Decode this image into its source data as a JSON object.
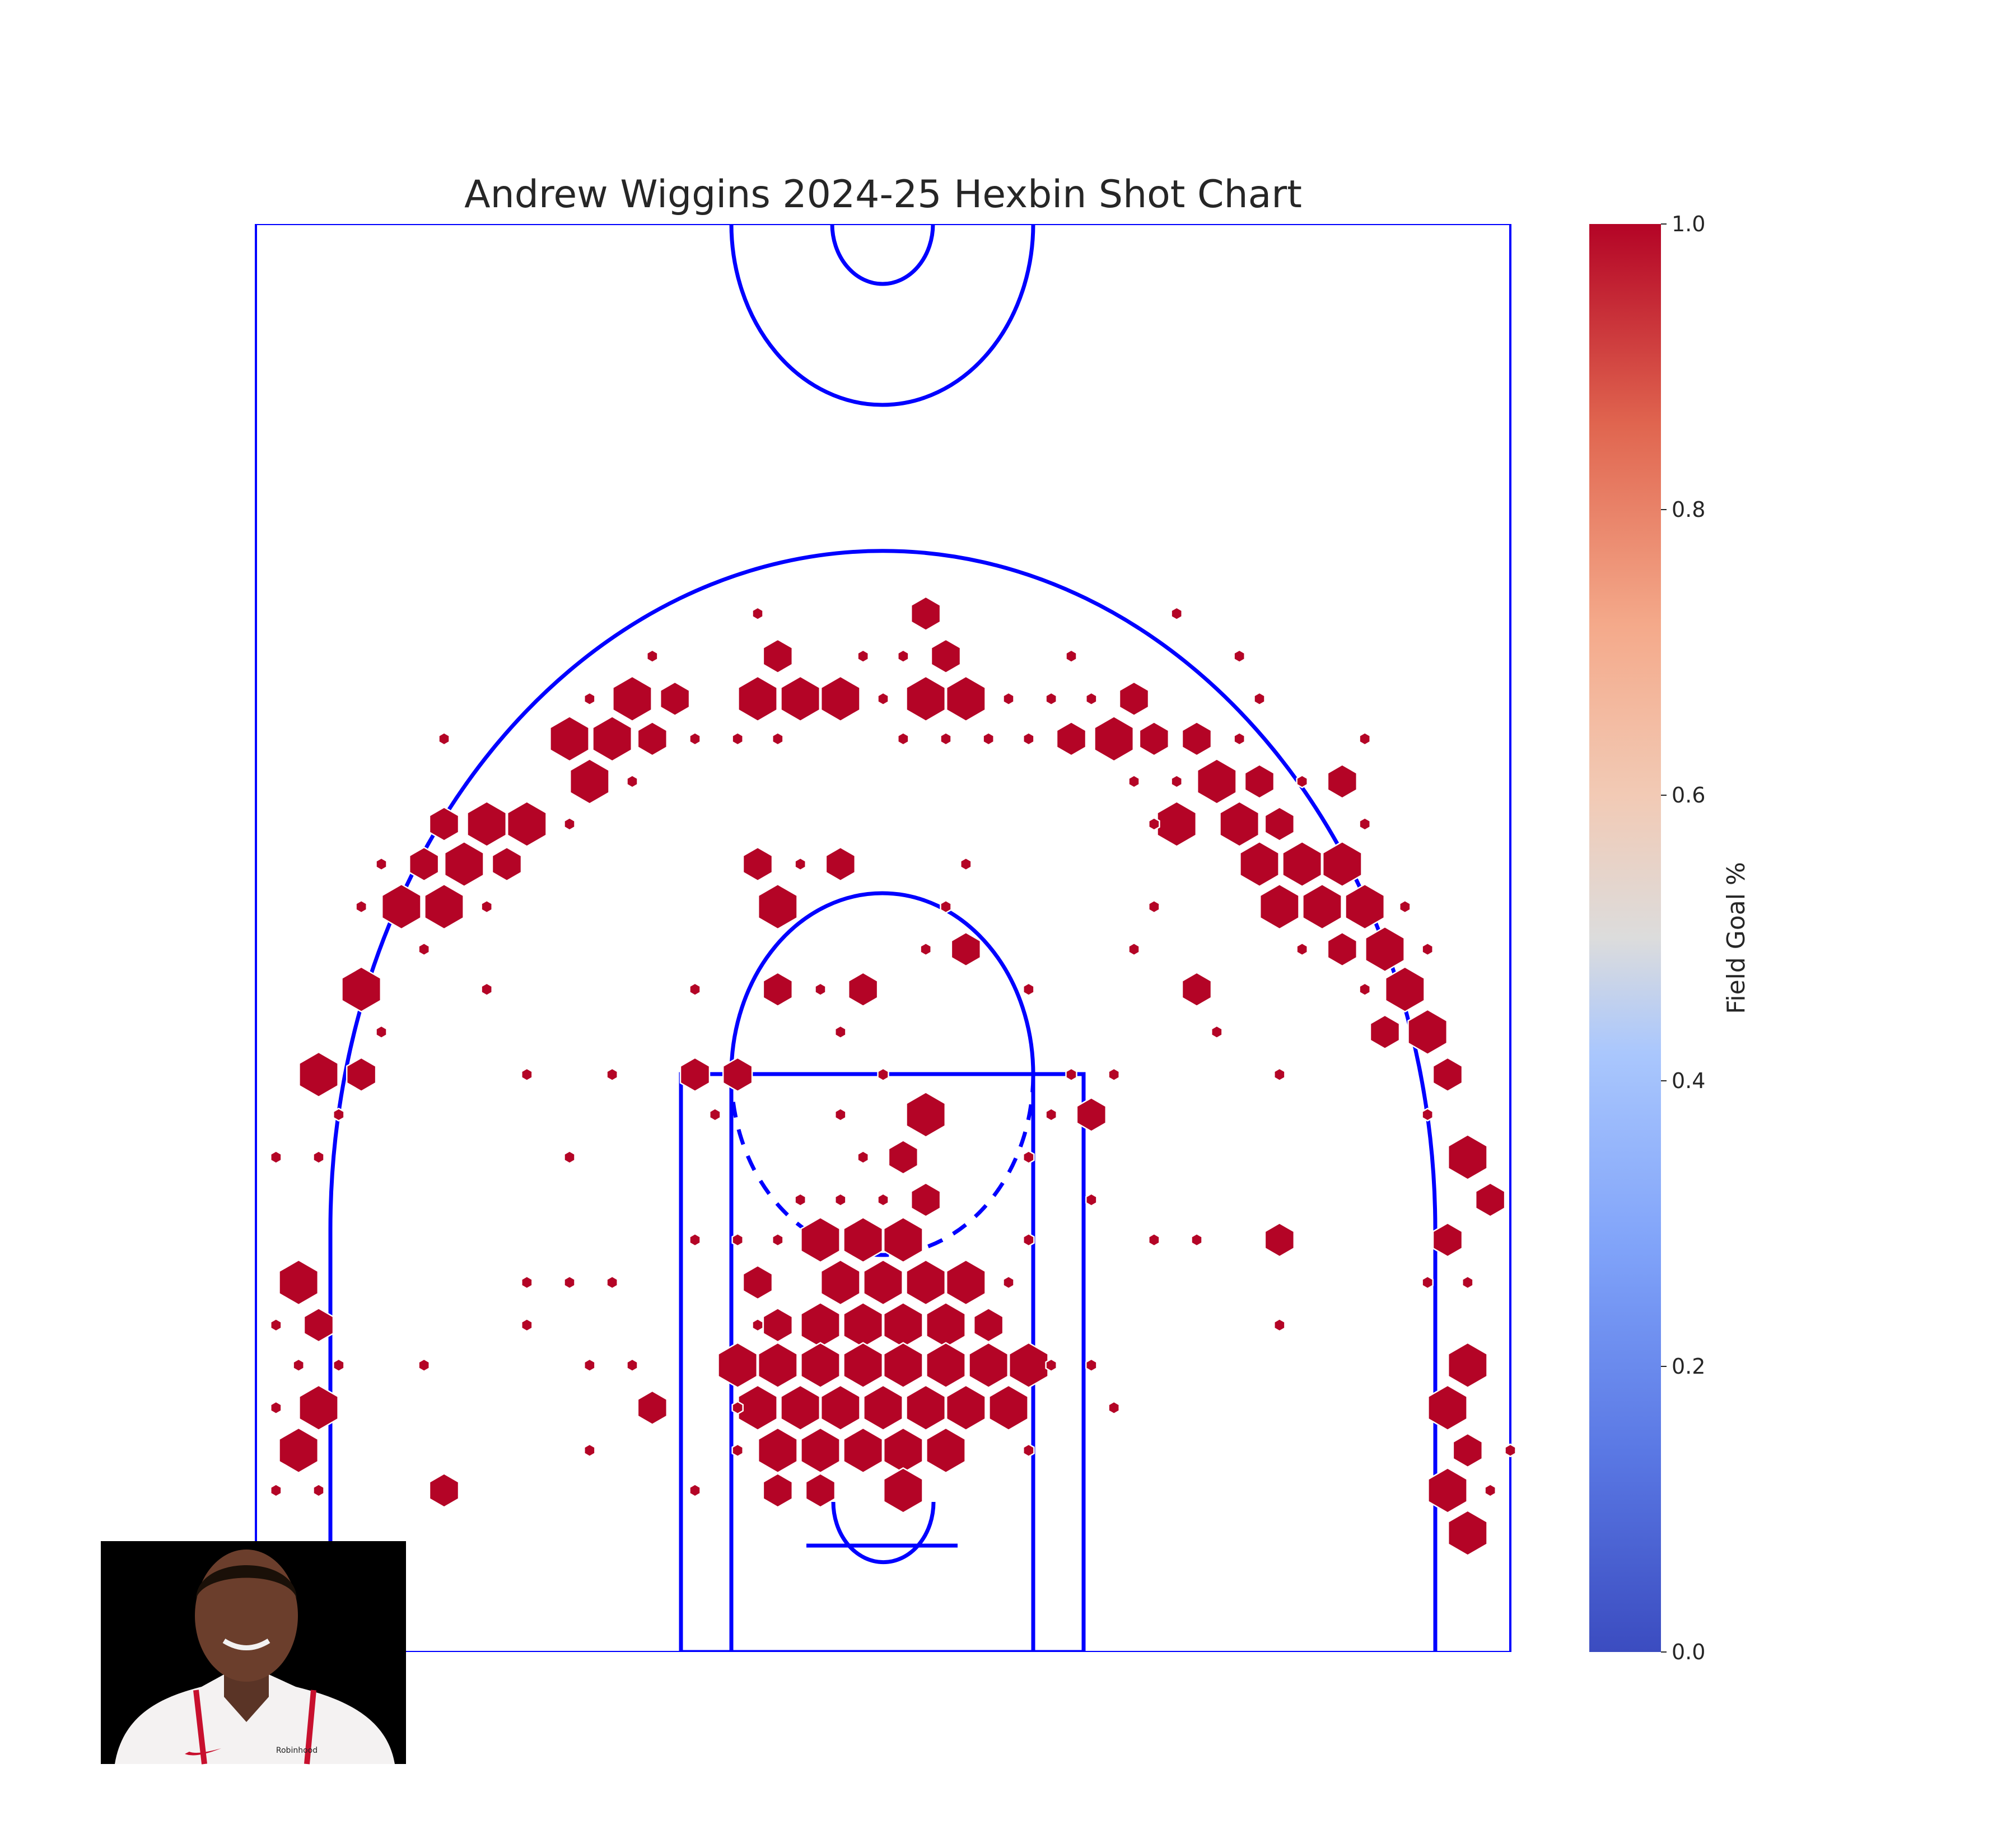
{
  "chart_data": {
    "type": "hexbin",
    "title": "Andrew Wiggins 2024-25 Hexbin Shot Chart",
    "colorbar": {
      "label": "Field Goal %",
      "range": [
        0,
        1
      ],
      "ticks": [
        "0.0",
        "0.2",
        "0.4",
        "0.6",
        "0.8",
        "1.0"
      ],
      "colormap": "coolwarm",
      "colors": [
        "#3b4cc0",
        "#6788ee",
        "#9abbff",
        "#c9d7f0",
        "#edd1c2",
        "#f7a889",
        "#e26952",
        "#b40426"
      ]
    },
    "hex_color": "#b40426",
    "court_color": "#0000ff",
    "xlim": [
      -250,
      250
    ],
    "ylim": [
      -47.5,
      522.5
    ],
    "size_levels": "relative shot frequency (1 = smallest, 5 = largest)",
    "bins": [
      {
        "x": 17,
        "y": 367,
        "s": 2
      },
      {
        "x": -50,
        "y": 367,
        "s": 1
      },
      {
        "x": 117,
        "y": 367,
        "s": 1
      },
      {
        "x": -42,
        "y": 350,
        "s": 2
      },
      {
        "x": 25,
        "y": 350,
        "s": 2
      },
      {
        "x": -92,
        "y": 350,
        "s": 1
      },
      {
        "x": -8,
        "y": 350,
        "s": 1
      },
      {
        "x": 8,
        "y": 350,
        "s": 1
      },
      {
        "x": 75,
        "y": 350,
        "s": 1
      },
      {
        "x": 142,
        "y": 350,
        "s": 1
      },
      {
        "x": -50,
        "y": 333,
        "s": 4
      },
      {
        "x": -33,
        "y": 333,
        "s": 4
      },
      {
        "x": -17,
        "y": 333,
        "s": 4
      },
      {
        "x": 17,
        "y": 333,
        "s": 4
      },
      {
        "x": 33,
        "y": 333,
        "s": 4
      },
      {
        "x": -100,
        "y": 333,
        "s": 4
      },
      {
        "x": -83,
        "y": 333,
        "s": 2
      },
      {
        "x": 100,
        "y": 333,
        "s": 2
      },
      {
        "x": -117,
        "y": 333,
        "s": 1
      },
      {
        "x": 0,
        "y": 333,
        "s": 1
      },
      {
        "x": 50,
        "y": 333,
        "s": 1
      },
      {
        "x": 67,
        "y": 333,
        "s": 1
      },
      {
        "x": 83,
        "y": 333,
        "s": 1
      },
      {
        "x": 150,
        "y": 333,
        "s": 1
      },
      {
        "x": -125,
        "y": 317,
        "s": 4
      },
      {
        "x": -108,
        "y": 317,
        "s": 4
      },
      {
        "x": 92,
        "y": 317,
        "s": 4
      },
      {
        "x": -92,
        "y": 317,
        "s": 2
      },
      {
        "x": 75,
        "y": 317,
        "s": 2
      },
      {
        "x": 108,
        "y": 317,
        "s": 2
      },
      {
        "x": 125,
        "y": 317,
        "s": 2
      },
      {
        "x": -175,
        "y": 317,
        "s": 1
      },
      {
        "x": -75,
        "y": 317,
        "s": 1
      },
      {
        "x": -58,
        "y": 317,
        "s": 1
      },
      {
        "x": -42,
        "y": 317,
        "s": 1
      },
      {
        "x": 8,
        "y": 317,
        "s": 1
      },
      {
        "x": 25,
        "y": 317,
        "s": 1
      },
      {
        "x": 42,
        "y": 317,
        "s": 1
      },
      {
        "x": 58,
        "y": 317,
        "s": 1
      },
      {
        "x": 142,
        "y": 317,
        "s": 1
      },
      {
        "x": 192,
        "y": 317,
        "s": 1
      },
      {
        "x": -117,
        "y": 300,
        "s": 4
      },
      {
        "x": 133,
        "y": 300,
        "s": 4
      },
      {
        "x": 150,
        "y": 300,
        "s": 2
      },
      {
        "x": 183,
        "y": 300,
        "s": 2
      },
      {
        "x": -100,
        "y": 300,
        "s": 1
      },
      {
        "x": 100,
        "y": 300,
        "s": 1
      },
      {
        "x": 117,
        "y": 300,
        "s": 1
      },
      {
        "x": 167,
        "y": 300,
        "s": 1
      },
      {
        "x": -158,
        "y": 283,
        "s": 4
      },
      {
        "x": -142,
        "y": 283,
        "s": 4
      },
      {
        "x": 117,
        "y": 283,
        "s": 4
      },
      {
        "x": 142,
        "y": 283,
        "s": 4
      },
      {
        "x": -175,
        "y": 283,
        "s": 2
      },
      {
        "x": 158,
        "y": 283,
        "s": 2
      },
      {
        "x": -125,
        "y": 283,
        "s": 1
      },
      {
        "x": 108,
        "y": 283,
        "s": 1
      },
      {
        "x": 192,
        "y": 283,
        "s": 1
      },
      {
        "x": -167,
        "y": 267,
        "s": 4
      },
      {
        "x": 150,
        "y": 267,
        "s": 4
      },
      {
        "x": 167,
        "y": 267,
        "s": 4
      },
      {
        "x": 183,
        "y": 267,
        "s": 4
      },
      {
        "x": -183,
        "y": 267,
        "s": 2
      },
      {
        "x": -150,
        "y": 267,
        "s": 2
      },
      {
        "x": -50,
        "y": 267,
        "s": 2
      },
      {
        "x": -17,
        "y": 267,
        "s": 2
      },
      {
        "x": -200,
        "y": 267,
        "s": 1
      },
      {
        "x": -33,
        "y": 267,
        "s": 1
      },
      {
        "x": 33,
        "y": 267,
        "s": 1
      },
      {
        "x": -192,
        "y": 250,
        "s": 4
      },
      {
        "x": -175,
        "y": 250,
        "s": 4
      },
      {
        "x": 158,
        "y": 250,
        "s": 4
      },
      {
        "x": 175,
        "y": 250,
        "s": 4
      },
      {
        "x": 192,
        "y": 250,
        "s": 4
      },
      {
        "x": -42,
        "y": 250,
        "s": 4
      },
      {
        "x": -208,
        "y": 250,
        "s": 1
      },
      {
        "x": -158,
        "y": 250,
        "s": 1
      },
      {
        "x": 25,
        "y": 250,
        "s": 1
      },
      {
        "x": 108,
        "y": 250,
        "s": 1
      },
      {
        "x": 208,
        "y": 250,
        "s": 1
      },
      {
        "x": 200,
        "y": 233,
        "s": 4
      },
      {
        "x": 33,
        "y": 233,
        "s": 2
      },
      {
        "x": 183,
        "y": 233,
        "s": 2
      },
      {
        "x": -183,
        "y": 233,
        "s": 1
      },
      {
        "x": 17,
        "y": 233,
        "s": 1
      },
      {
        "x": 100,
        "y": 233,
        "s": 1
      },
      {
        "x": 167,
        "y": 233,
        "s": 1
      },
      {
        "x": 217,
        "y": 233,
        "s": 1
      },
      {
        "x": -208,
        "y": 217,
        "s": 4
      },
      {
        "x": 208,
        "y": 217,
        "s": 4
      },
      {
        "x": -42,
        "y": 217,
        "s": 2
      },
      {
        "x": -8,
        "y": 217,
        "s": 2
      },
      {
        "x": 125,
        "y": 217,
        "s": 2
      },
      {
        "x": -158,
        "y": 217,
        "s": 1
      },
      {
        "x": -75,
        "y": 217,
        "s": 1
      },
      {
        "x": -25,
        "y": 217,
        "s": 1
      },
      {
        "x": 58,
        "y": 217,
        "s": 1
      },
      {
        "x": 192,
        "y": 217,
        "s": 1
      },
      {
        "x": 217,
        "y": 200,
        "s": 4
      },
      {
        "x": 200,
        "y": 200,
        "s": 2
      },
      {
        "x": -200,
        "y": 200,
        "s": 1
      },
      {
        "x": -17,
        "y": 200,
        "s": 1
      },
      {
        "x": 133,
        "y": 200,
        "s": 1
      },
      {
        "x": -225,
        "y": 183,
        "s": 4
      },
      {
        "x": -208,
        "y": 183,
        "s": 2
      },
      {
        "x": -75,
        "y": 183,
        "s": 2
      },
      {
        "x": -58,
        "y": 183,
        "s": 2
      },
      {
        "x": 225,
        "y": 183,
        "s": 2
      },
      {
        "x": -142,
        "y": 183,
        "s": 1
      },
      {
        "x": -108,
        "y": 183,
        "s": 1
      },
      {
        "x": 0,
        "y": 183,
        "s": 1
      },
      {
        "x": 75,
        "y": 183,
        "s": 1
      },
      {
        "x": 92,
        "y": 183,
        "s": 1
      },
      {
        "x": 158,
        "y": 183,
        "s": 1
      },
      {
        "x": 17,
        "y": 167,
        "s": 4
      },
      {
        "x": 83,
        "y": 167,
        "s": 2
      },
      {
        "x": -217,
        "y": 167,
        "s": 1
      },
      {
        "x": -67,
        "y": 167,
        "s": 1
      },
      {
        "x": -17,
        "y": 167,
        "s": 1
      },
      {
        "x": 67,
        "y": 167,
        "s": 1
      },
      {
        "x": 217,
        "y": 167,
        "s": 1
      },
      {
        "x": 233,
        "y": 150,
        "s": 4
      },
      {
        "x": 8,
        "y": 150,
        "s": 2
      },
      {
        "x": -242,
        "y": 150,
        "s": 1
      },
      {
        "x": -225,
        "y": 150,
        "s": 1
      },
      {
        "x": -125,
        "y": 150,
        "s": 1
      },
      {
        "x": -8,
        "y": 150,
        "s": 1
      },
      {
        "x": 58,
        "y": 150,
        "s": 1
      },
      {
        "x": 242,
        "y": 133,
        "s": 2
      },
      {
        "x": 17,
        "y": 133,
        "s": 2
      },
      {
        "x": -33,
        "y": 133,
        "s": 1
      },
      {
        "x": -17,
        "y": 133,
        "s": 1
      },
      {
        "x": 0,
        "y": 133,
        "s": 1
      },
      {
        "x": 83,
        "y": 133,
        "s": 1
      },
      {
        "x": -25,
        "y": 117,
        "s": 4
      },
      {
        "x": -8,
        "y": 117,
        "s": 4
      },
      {
        "x": 8,
        "y": 117,
        "s": 4
      },
      {
        "x": 158,
        "y": 117,
        "s": 2
      },
      {
        "x": 225,
        "y": 117,
        "s": 2
      },
      {
        "x": -75,
        "y": 117,
        "s": 1
      },
      {
        "x": -58,
        "y": 117,
        "s": 1
      },
      {
        "x": -42,
        "y": 117,
        "s": 1
      },
      {
        "x": 58,
        "y": 117,
        "s": 1
      },
      {
        "x": 108,
        "y": 117,
        "s": 1
      },
      {
        "x": 125,
        "y": 117,
        "s": 1
      },
      {
        "x": -17,
        "y": 100,
        "s": 4
      },
      {
        "x": 0,
        "y": 100,
        "s": 4
      },
      {
        "x": 17,
        "y": 100,
        "s": 4
      },
      {
        "x": 33,
        "y": 100,
        "s": 4
      },
      {
        "x": -233,
        "y": 100,
        "s": 4
      },
      {
        "x": -50,
        "y": 100,
        "s": 2
      },
      {
        "x": -142,
        "y": 100,
        "s": 1
      },
      {
        "x": -125,
        "y": 100,
        "s": 1
      },
      {
        "x": -108,
        "y": 100,
        "s": 1
      },
      {
        "x": 50,
        "y": 100,
        "s": 1
      },
      {
        "x": 217,
        "y": 100,
        "s": 1
      },
      {
        "x": 233,
        "y": 100,
        "s": 1
      },
      {
        "x": -25,
        "y": 83,
        "s": 4
      },
      {
        "x": -8,
        "y": 83,
        "s": 4
      },
      {
        "x": 8,
        "y": 83,
        "s": 4
      },
      {
        "x": 25,
        "y": 83,
        "s": 4
      },
      {
        "x": -225,
        "y": 83,
        "s": 2
      },
      {
        "x": -42,
        "y": 83,
        "s": 2
      },
      {
        "x": 42,
        "y": 83,
        "s": 2
      },
      {
        "x": -242,
        "y": 83,
        "s": 1
      },
      {
        "x": -142,
        "y": 83,
        "s": 1
      },
      {
        "x": -50,
        "y": 83,
        "s": 1
      },
      {
        "x": 158,
        "y": 83,
        "s": 1
      },
      {
        "x": -58,
        "y": 67,
        "s": 4
      },
      {
        "x": -42,
        "y": 67,
        "s": 4
      },
      {
        "x": -25,
        "y": 67,
        "s": 4
      },
      {
        "x": -8,
        "y": 67,
        "s": 4
      },
      {
        "x": 8,
        "y": 67,
        "s": 4
      },
      {
        "x": 25,
        "y": 67,
        "s": 4
      },
      {
        "x": 42,
        "y": 67,
        "s": 4
      },
      {
        "x": 58,
        "y": 67,
        "s": 4
      },
      {
        "x": 233,
        "y": 67,
        "s": 4
      },
      {
        "x": -233,
        "y": 67,
        "s": 1
      },
      {
        "x": -217,
        "y": 67,
        "s": 1
      },
      {
        "x": -183,
        "y": 67,
        "s": 1
      },
      {
        "x": -117,
        "y": 67,
        "s": 1
      },
      {
        "x": -100,
        "y": 67,
        "s": 1
      },
      {
        "x": 67,
        "y": 67,
        "s": 1
      },
      {
        "x": 83,
        "y": 67,
        "s": 1
      },
      {
        "x": -50,
        "y": 50,
        "s": 4
      },
      {
        "x": -33,
        "y": 50,
        "s": 4
      },
      {
        "x": -17,
        "y": 50,
        "s": 4
      },
      {
        "x": 0,
        "y": 50,
        "s": 4
      },
      {
        "x": 17,
        "y": 50,
        "s": 4
      },
      {
        "x": 33,
        "y": 50,
        "s": 4
      },
      {
        "x": 50,
        "y": 50,
        "s": 4
      },
      {
        "x": -225,
        "y": 50,
        "s": 4
      },
      {
        "x": 225,
        "y": 50,
        "s": 4
      },
      {
        "x": -92,
        "y": 50,
        "s": 2
      },
      {
        "x": -242,
        "y": 50,
        "s": 1
      },
      {
        "x": -58,
        "y": 50,
        "s": 1
      },
      {
        "x": 92,
        "y": 50,
        "s": 1
      },
      {
        "x": -42,
        "y": 33,
        "s": 4
      },
      {
        "x": -25,
        "y": 33,
        "s": 4
      },
      {
        "x": -8,
        "y": 33,
        "s": 4
      },
      {
        "x": 8,
        "y": 33,
        "s": 4
      },
      {
        "x": 25,
        "y": 33,
        "s": 4
      },
      {
        "x": -233,
        "y": 33,
        "s": 4
      },
      {
        "x": 233,
        "y": 33,
        "s": 2
      },
      {
        "x": -117,
        "y": 33,
        "s": 1
      },
      {
        "x": -58,
        "y": 33,
        "s": 1
      },
      {
        "x": 58,
        "y": 33,
        "s": 1
      },
      {
        "x": 250,
        "y": 33,
        "s": 1
      },
      {
        "x": 8,
        "y": 17,
        "s": 4
      },
      {
        "x": 225,
        "y": 17,
        "s": 4
      },
      {
        "x": -175,
        "y": 17,
        "s": 2
      },
      {
        "x": -42,
        "y": 17,
        "s": 2
      },
      {
        "x": -25,
        "y": 17,
        "s": 2
      },
      {
        "x": -242,
        "y": 17,
        "s": 1
      },
      {
        "x": -225,
        "y": 17,
        "s": 1
      },
      {
        "x": -75,
        "y": 17,
        "s": 1
      },
      {
        "x": 242,
        "y": 17,
        "s": 1
      },
      {
        "x": 233,
        "y": 0,
        "s": 4
      }
    ]
  },
  "player_photo": {
    "jersey_text": "Robinhood"
  }
}
